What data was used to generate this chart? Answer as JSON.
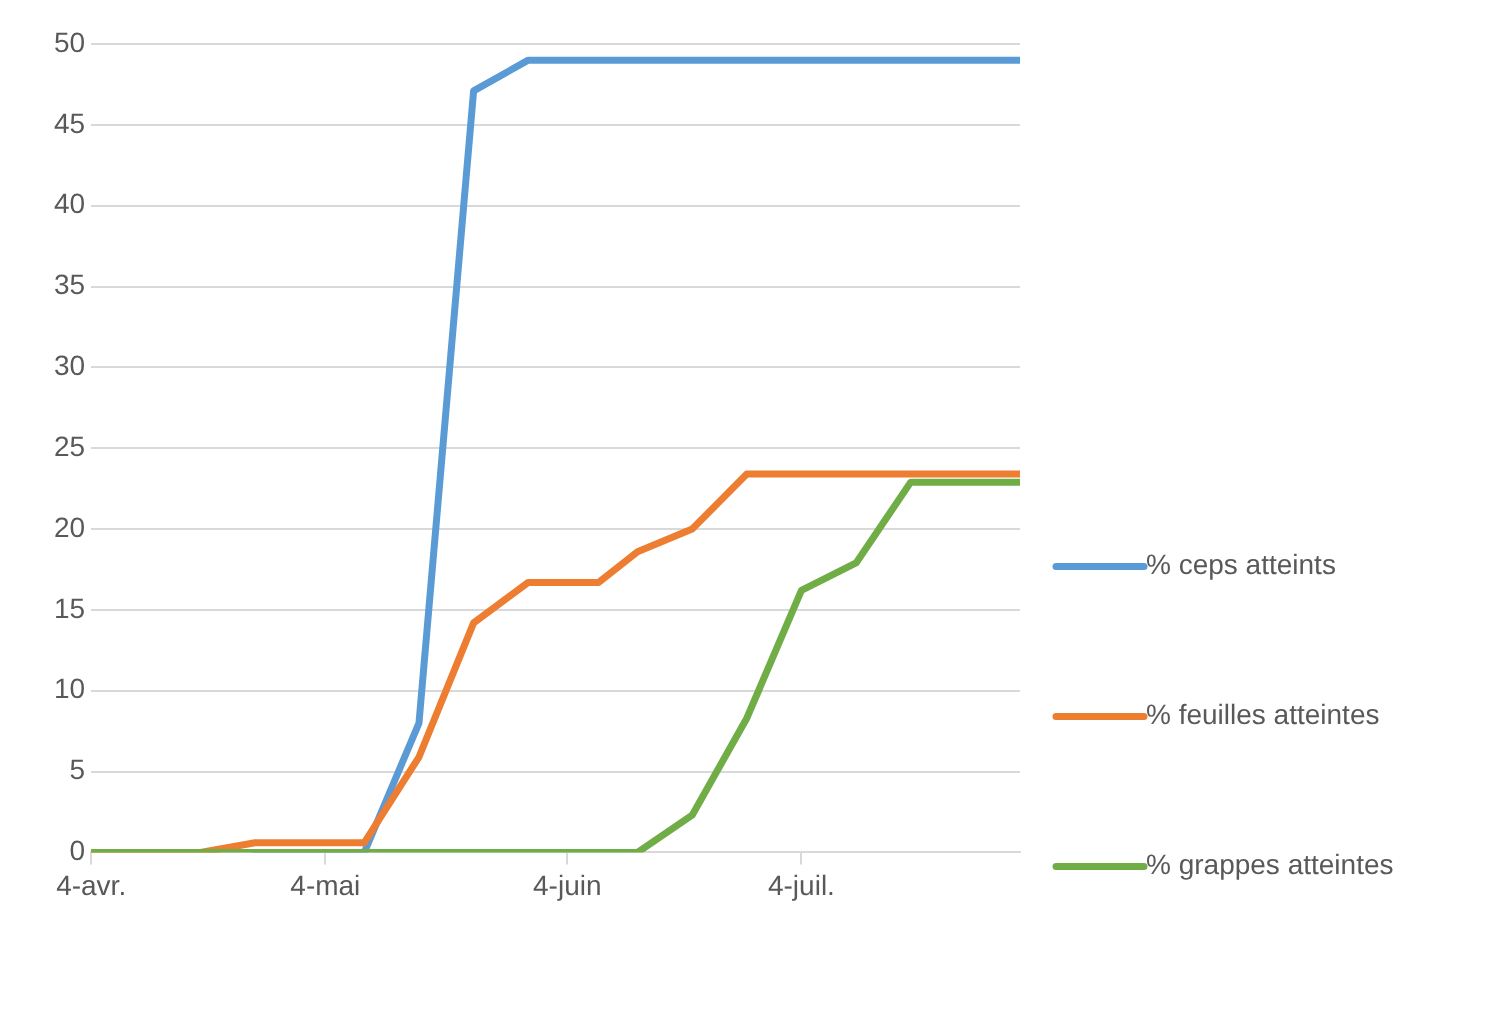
{
  "chart_data": {
    "type": "line",
    "x": [
      "--04-04",
      "--04-18",
      "--04-25",
      "--05-09",
      "--05-16",
      "--05-23",
      "--05-30",
      "--06-08",
      "--06-13",
      "--06-20",
      "--06-27",
      "--07-04",
      "--07-11",
      "--07-18",
      "--08-01"
    ],
    "series": [
      {
        "name": "% ceps atteints",
        "color": "#5b9bd5",
        "values": [
          null,
          null,
          0,
          0,
          8,
          47.1,
          49,
          49,
          49,
          49,
          49,
          49,
          49,
          49,
          49
        ]
      },
      {
        "name": "% feuilles atteintes",
        "color": "#ed7d31",
        "values": [
          0,
          0,
          0.6,
          0.6,
          5.9,
          14.2,
          16.7,
          16.7,
          18.6,
          20,
          23.4,
          23.4,
          23.4,
          23.4,
          23.4
        ]
      },
      {
        "name": "% grappes atteintes",
        "color": "#70ad47",
        "values": [
          0,
          0,
          0,
          0,
          0,
          0,
          0,
          0,
          0,
          2.3,
          8.3,
          16.2,
          17.9,
          22.9,
          22.9
        ]
      }
    ],
    "xlim": [
      "--04-04",
      "--08-01"
    ],
    "xticks": [
      {
        "value": "--04-04",
        "label": "4-avr."
      },
      {
        "value": "--05-04",
        "label": "4-mai"
      },
      {
        "value": "--06-04",
        "label": "4-juin"
      },
      {
        "value": "--07-04",
        "label": "4-juil."
      }
    ],
    "ylim": [
      0,
      50
    ],
    "yticks": [
      0,
      5,
      10,
      15,
      20,
      25,
      30,
      35,
      40,
      45,
      50
    ],
    "grid": "y",
    "legend": "right",
    "marker": "none",
    "line_style": "solid"
  }
}
